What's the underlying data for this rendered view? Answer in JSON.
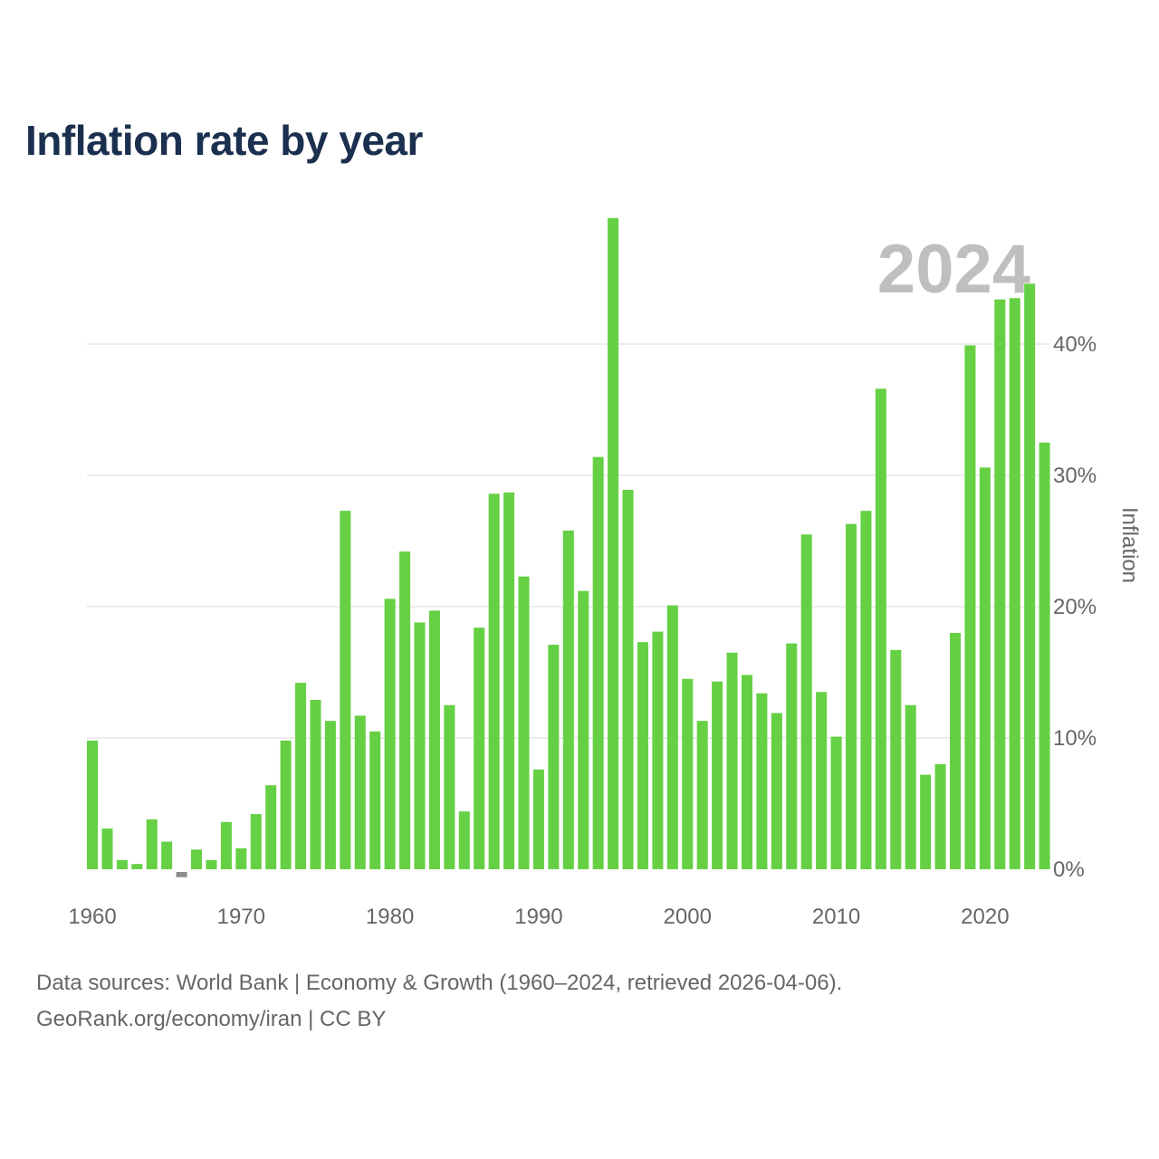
{
  "chart_data": {
    "type": "bar",
    "title": "Inflation rate by year",
    "year_label": "2024",
    "ylabel": "Inflation",
    "xlabel": "",
    "ylim": [
      0,
      50
    ],
    "y_ticks": [
      {
        "value": 0,
        "label": "0%"
      },
      {
        "value": 10,
        "label": "10%"
      },
      {
        "value": 20,
        "label": "20%"
      },
      {
        "value": 30,
        "label": "30%"
      },
      {
        "value": 40,
        "label": "40%"
      }
    ],
    "x_ticks": [
      {
        "value": 1960,
        "label": "1960"
      },
      {
        "value": 1970,
        "label": "1970"
      },
      {
        "value": 1980,
        "label": "1980"
      },
      {
        "value": 1990,
        "label": "1990"
      },
      {
        "value": 2000,
        "label": "2000"
      },
      {
        "value": 2010,
        "label": "2010"
      },
      {
        "value": 2020,
        "label": "2020"
      }
    ],
    "x": [
      1960,
      1961,
      1962,
      1963,
      1964,
      1965,
      1966,
      1967,
      1968,
      1969,
      1970,
      1971,
      1972,
      1973,
      1974,
      1975,
      1976,
      1977,
      1978,
      1979,
      1980,
      1981,
      1982,
      1983,
      1984,
      1985,
      1986,
      1987,
      1988,
      1989,
      1990,
      1991,
      1992,
      1993,
      1994,
      1995,
      1996,
      1997,
      1998,
      1999,
      2000,
      2001,
      2002,
      2003,
      2004,
      2005,
      2006,
      2007,
      2008,
      2009,
      2010,
      2011,
      2012,
      2013,
      2014,
      2015,
      2016,
      2017,
      2018,
      2019,
      2020,
      2021,
      2022,
      2023,
      2024
    ],
    "values": [
      9.8,
      3.1,
      0.7,
      0.4,
      3.8,
      2.1,
      -0.4,
      1.5,
      0.7,
      3.6,
      1.6,
      4.2,
      6.4,
      9.8,
      14.2,
      12.9,
      11.3,
      27.3,
      11.7,
      10.5,
      20.6,
      24.2,
      18.8,
      19.7,
      12.5,
      4.4,
      18.4,
      28.6,
      28.7,
      22.3,
      7.6,
      17.1,
      25.8,
      21.2,
      31.4,
      49.6,
      28.9,
      17.3,
      18.1,
      20.1,
      14.5,
      11.3,
      14.3,
      16.5,
      14.8,
      13.4,
      11.9,
      17.2,
      25.5,
      13.5,
      10.1,
      26.3,
      27.3,
      36.6,
      16.7,
      12.5,
      7.2,
      8.0,
      18.0,
      39.9,
      30.6,
      43.4,
      43.5,
      44.6,
      32.5
    ],
    "colors": {
      "positive": "#66d044",
      "negative": "#8c8c8c",
      "grid": "#e6e6e6",
      "axis_text": "#666666",
      "year_watermark": "#bfbfbf"
    }
  },
  "footer": {
    "line1": "Data sources: World Bank | Economy & Growth (1960–2024, retrieved 2026-04-06).",
    "line2": "GeoRank.org/economy/iran | CC BY"
  }
}
